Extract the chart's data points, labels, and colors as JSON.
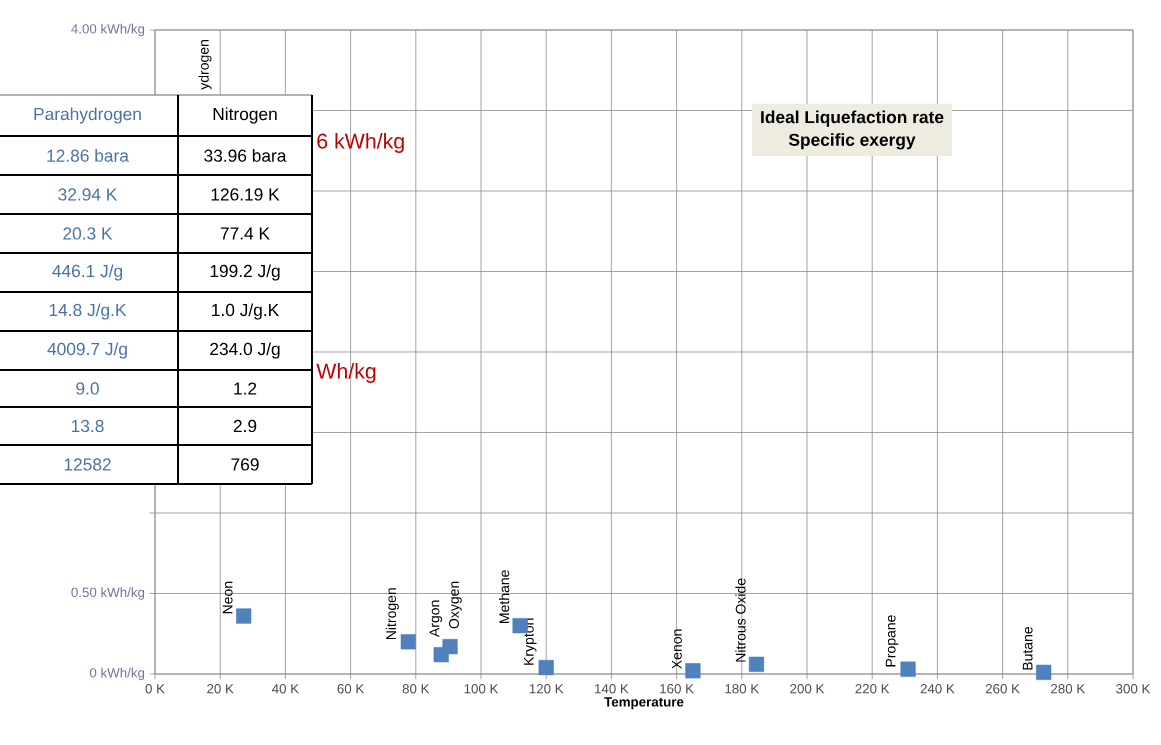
{
  "chart_data": [
    {
      "type": "scatter",
      "title": "Ideal Liquefaction rate",
      "subtitle": "Specific exergy",
      "xlabel": "Temperature",
      "x": [
        27.2,
        77.7,
        87.8,
        90.5,
        112,
        120,
        165,
        184.5,
        231,
        272.6
      ],
      "series": [
        {
          "color": "#4f81bd",
          "values": [
            0.36,
            0.2,
            0.12,
            0.17,
            0.3,
            0.04,
            0.02,
            0.06,
            0.03,
            0.01
          ]
        }
      ],
      "marker": "square",
      "grid": true,
      "xlim": [
        0,
        300
      ],
      "ylim": [
        0,
        4
      ],
      "xticks": [
        {
          "value": 0,
          "label": "0 K"
        },
        {
          "value": 20,
          "label": "20 K"
        },
        {
          "value": 40,
          "label": "40 K"
        },
        {
          "value": 60,
          "label": "60 K"
        },
        {
          "value": 80,
          "label": "80 K"
        },
        {
          "value": 100,
          "label": "100 K"
        },
        {
          "value": 120,
          "label": "120 K"
        },
        {
          "value": 140,
          "label": "140 K"
        },
        {
          "value": 160,
          "label": "160 K"
        },
        {
          "value": 180,
          "label": "180 K"
        },
        {
          "value": 200,
          "label": "200 K"
        },
        {
          "value": 220,
          "label": "220 K"
        },
        {
          "value": 240,
          "label": "240 K"
        },
        {
          "value": 260,
          "label": "260 K"
        },
        {
          "value": 280,
          "label": "280 K"
        },
        {
          "value": 300,
          "label": "300 K"
        }
      ],
      "yticks": [
        {
          "value": 0,
          "label": "0 kWh/kg"
        },
        {
          "value": 0.5,
          "label": "0.50 kWh/kg"
        },
        {
          "value": 1,
          "label": null
        },
        {
          "value": 1.5,
          "label": null
        },
        {
          "value": 2,
          "label": null
        },
        {
          "value": 2.5,
          "label": null
        },
        {
          "value": 3,
          "label": null
        },
        {
          "value": 3.5,
          "label": null
        },
        {
          "value": 4,
          "label": "4.00 kWh/kg"
        }
      ],
      "annotations": [
        "6 kWh/kg",
        "Wh/kg",
        "ydrogen",
        {
          "text": "Neon",
          "x": 27.2,
          "y": 0.36
        },
        {
          "text": "Nitrogen",
          "x": 77.7,
          "y": 0.2
        },
        {
          "text": "Argon",
          "x": 87.8,
          "y": 0.12
        },
        {
          "text": "Oxygen",
          "x": 90.5,
          "y": 0.17
        },
        {
          "text": "Methane",
          "x": 112,
          "y": 0.3
        },
        {
          "text": "Krypton",
          "x": 120,
          "y": 0.04
        },
        {
          "text": "Xenon",
          "x": 165,
          "y": 0.02
        },
        {
          "text": "Nitrous Oxide",
          "x": 184.5,
          "y": 0.06
        },
        {
          "text": "Propane",
          "x": 231,
          "y": 0.03
        },
        {
          "text": "Butane",
          "x": 272.6,
          "y": 0.01
        }
      ]
    },
    {
      "type": "other",
      "categories": [
        "Parahydrogen",
        "Nitrogen"
      ],
      "colors": [
        "#4a72a8",
        "#000000"
      ],
      "cell_labels": [
        [
          "12.86 bara",
          "33.96 bara"
        ],
        [
          "32.94 K",
          "126.19 K"
        ],
        [
          "20.3 K",
          "77.4 K"
        ],
        [
          "446.1 J/g",
          "199.2 J/g"
        ],
        [
          "14.8 J/g.K",
          "1.0 J/g.K"
        ],
        [
          "4009.7 J/g",
          "234.0 J/g"
        ],
        [
          "9.0",
          "1.2"
        ],
        [
          "13.8",
          "2.9"
        ],
        [
          "12582",
          "769"
        ]
      ]
    }
  ]
}
